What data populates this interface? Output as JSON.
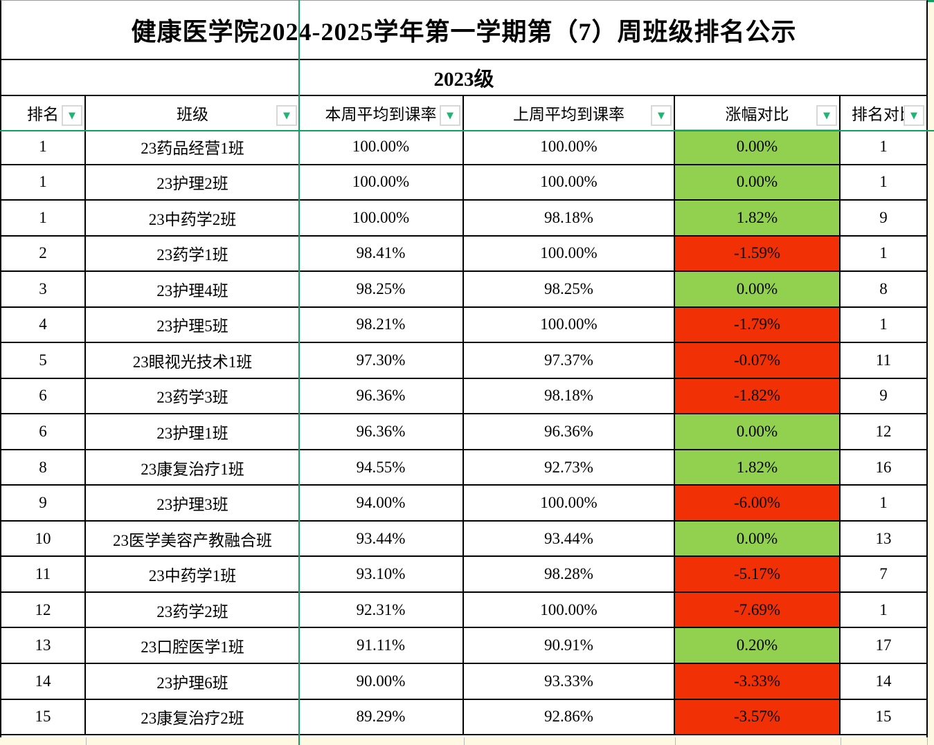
{
  "title": "健康医学院2024-2025学年第一学期第（7）周班级排名公示",
  "subtitle": "2023级",
  "table": {
    "columns": [
      "排名",
      "班级",
      "本周平均到课率",
      "上周平均到课率",
      "涨幅对比",
      "排名对比"
    ],
    "rows": [
      {
        "rank": "1",
        "class_name": "23药品经营1班",
        "this_week": "100.00%",
        "last_week": "100.00%",
        "change": "0.00%",
        "rank_compare": "1"
      },
      {
        "rank": "1",
        "class_name": "23护理2班",
        "this_week": "100.00%",
        "last_week": "100.00%",
        "change": "0.00%",
        "rank_compare": "1"
      },
      {
        "rank": "1",
        "class_name": "23中药学2班",
        "this_week": "100.00%",
        "last_week": "98.18%",
        "change": "1.82%",
        "rank_compare": "9"
      },
      {
        "rank": "2",
        "class_name": "23药学1班",
        "this_week": "98.41%",
        "last_week": "100.00%",
        "change": "-1.59%",
        "rank_compare": "1"
      },
      {
        "rank": "3",
        "class_name": "23护理4班",
        "this_week": "98.25%",
        "last_week": "98.25%",
        "change": "0.00%",
        "rank_compare": "8"
      },
      {
        "rank": "4",
        "class_name": "23护理5班",
        "this_week": "98.21%",
        "last_week": "100.00%",
        "change": "-1.79%",
        "rank_compare": "1"
      },
      {
        "rank": "5",
        "class_name": "23眼视光技术1班",
        "this_week": "97.30%",
        "last_week": "97.37%",
        "change": "-0.07%",
        "rank_compare": "11"
      },
      {
        "rank": "6",
        "class_name": "23药学3班",
        "this_week": "96.36%",
        "last_week": "98.18%",
        "change": "-1.82%",
        "rank_compare": "9"
      },
      {
        "rank": "6",
        "class_name": "23护理1班",
        "this_week": "96.36%",
        "last_week": "96.36%",
        "change": "0.00%",
        "rank_compare": "12"
      },
      {
        "rank": "8",
        "class_name": "23康复治疗1班",
        "this_week": "94.55%",
        "last_week": "92.73%",
        "change": "1.82%",
        "rank_compare": "16"
      },
      {
        "rank": "9",
        "class_name": "23护理3班",
        "this_week": "94.00%",
        "last_week": "100.00%",
        "change": "-6.00%",
        "rank_compare": "1"
      },
      {
        "rank": "10",
        "class_name": "23医学美容产教融合班",
        "this_week": "93.44%",
        "last_week": "93.44%",
        "change": "0.00%",
        "rank_compare": "13"
      },
      {
        "rank": "11",
        "class_name": "23中药学1班",
        "this_week": "93.10%",
        "last_week": "98.28%",
        "change": "-5.17%",
        "rank_compare": "7"
      },
      {
        "rank": "12",
        "class_name": "23药学2班",
        "this_week": "92.31%",
        "last_week": "100.00%",
        "change": "-7.69%",
        "rank_compare": "1"
      },
      {
        "rank": "13",
        "class_name": "23口腔医学1班",
        "this_week": "91.11%",
        "last_week": "90.91%",
        "change": "0.20%",
        "rank_compare": "17"
      },
      {
        "rank": "14",
        "class_name": "23护理6班",
        "this_week": "90.00%",
        "last_week": "93.33%",
        "change": "-3.33%",
        "rank_compare": "14"
      },
      {
        "rank": "15",
        "class_name": "23康复治疗2班",
        "this_week": "89.29%",
        "last_week": "92.86%",
        "change": "-3.57%",
        "rank_compare": "15"
      }
    ]
  },
  "icons": {
    "filter_dropdown_glyph": "▼"
  },
  "colors": {
    "positive_bg": "#92d050",
    "negative_bg": "#f23005",
    "freeze_line": "#10a162",
    "filter_triangle": "#21b573",
    "next_cell_cream": "#fdf9e3",
    "grid": "#000000"
  }
}
